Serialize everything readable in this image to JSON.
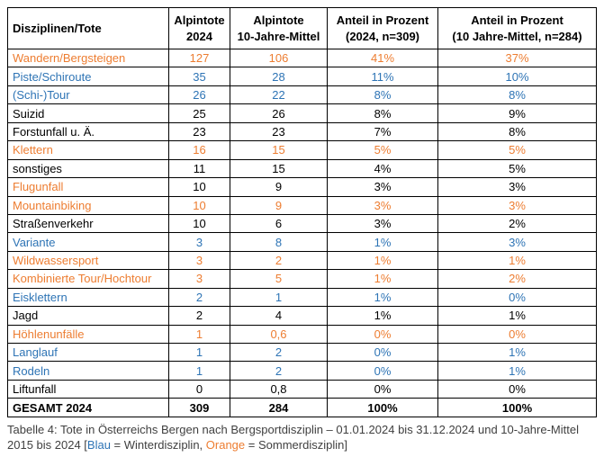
{
  "colors": {
    "orange": "#ED7D31",
    "blue": "#2E74B5",
    "black": "#000000",
    "caption_gray": "#404040"
  },
  "table": {
    "headers": [
      "Disziplinen/Tote",
      "Alpintote\n2024",
      "Alpintote\n10-Jahre-Mittel",
      "Anteil in Prozent\n(2024, n=309)",
      "Anteil in Prozent\n(10 Jahre-Mittel, n=284)"
    ],
    "rows": [
      {
        "label": "Wandern/Bergsteigen",
        "values": [
          "127",
          "106",
          "41%",
          "37%"
        ],
        "label_color": "orange",
        "value_color": "orange"
      },
      {
        "label": "Piste/Schiroute",
        "values": [
          "35",
          "28",
          "11%",
          "10%"
        ],
        "label_color": "blue",
        "value_color": "blue"
      },
      {
        "label": "(Schi-)Tour",
        "values": [
          "26",
          "22",
          "8%",
          "8%"
        ],
        "label_color": "blue",
        "value_color": "blue"
      },
      {
        "label": "Suizid",
        "values": [
          "25",
          "26",
          "8%",
          "9%"
        ],
        "label_color": "black",
        "value_color": "black"
      },
      {
        "label": "Forstunfall u. Ä.",
        "values": [
          "23",
          "23",
          "7%",
          "8%"
        ],
        "label_color": "black",
        "value_color": "black"
      },
      {
        "label": "Klettern",
        "values": [
          "16",
          "15",
          "5%",
          "5%"
        ],
        "label_color": "orange",
        "value_color": "orange"
      },
      {
        "label": "sonstiges",
        "values": [
          "11",
          "15",
          "4%",
          "5%"
        ],
        "label_color": "black",
        "value_color": "black"
      },
      {
        "label": "Flugunfall",
        "values": [
          "10",
          "9",
          "3%",
          "3%"
        ],
        "label_color": "orange",
        "value_color": "black"
      },
      {
        "label": "Mountainbiking",
        "values": [
          "10",
          "9",
          "3%",
          "3%"
        ],
        "label_color": "orange",
        "value_color": "orange"
      },
      {
        "label": "Straßenverkehr",
        "values": [
          "10",
          "6",
          "3%",
          "2%"
        ],
        "label_color": "black",
        "value_color": "black"
      },
      {
        "label": "Variante",
        "values": [
          "3",
          "8",
          "1%",
          "3%"
        ],
        "label_color": "blue",
        "value_color": "blue"
      },
      {
        "label": "Wildwassersport",
        "values": [
          "3",
          "2",
          "1%",
          "1%"
        ],
        "label_color": "orange",
        "value_color": "orange"
      },
      {
        "label": "Kombinierte Tour/Hochtour",
        "values": [
          "3",
          "5",
          "1%",
          "2%"
        ],
        "label_color": "orange",
        "value_color": "orange"
      },
      {
        "label": "Eisklettern",
        "values": [
          "2",
          "1",
          "1%",
          "0%"
        ],
        "label_color": "blue",
        "value_color": "blue"
      },
      {
        "label": "Jagd",
        "values": [
          "2",
          "4",
          "1%",
          "1%"
        ],
        "label_color": "black",
        "value_color": "black"
      },
      {
        "label": "Höhlenunfälle",
        "values": [
          "1",
          "0,6",
          "0%",
          "0%"
        ],
        "label_color": "orange",
        "value_color": "orange"
      },
      {
        "label": "Langlauf",
        "values": [
          "1",
          "2",
          "0%",
          "1%"
        ],
        "label_color": "blue",
        "value_color": "blue"
      },
      {
        "label": "Rodeln",
        "values": [
          "1",
          "2",
          "0%",
          "1%"
        ],
        "label_color": "blue",
        "value_color": "blue"
      },
      {
        "label": "Liftunfall",
        "values": [
          "0",
          "0,8",
          "0%",
          "0%"
        ],
        "label_color": "black",
        "value_color": "black"
      }
    ],
    "total": {
      "label": "GESAMT 2024",
      "values": [
        "309",
        "284",
        "100%",
        "100%"
      ]
    }
  },
  "caption": {
    "segments": [
      {
        "text": "Tabelle 4: Tote in Österreichs Bergen nach Bergsportdisziplin – 01.01.2024 bis 31.12.2024 und 10-Jahre-Mittel 2015 bis 2024 [",
        "color": "gray"
      },
      {
        "text": "Blau",
        "color": "blue"
      },
      {
        "text": " = Winterdisziplin, ",
        "color": "gray"
      },
      {
        "text": "Orange",
        "color": "orange"
      },
      {
        "text": " = Sommerdisziplin]",
        "color": "gray"
      }
    ]
  }
}
